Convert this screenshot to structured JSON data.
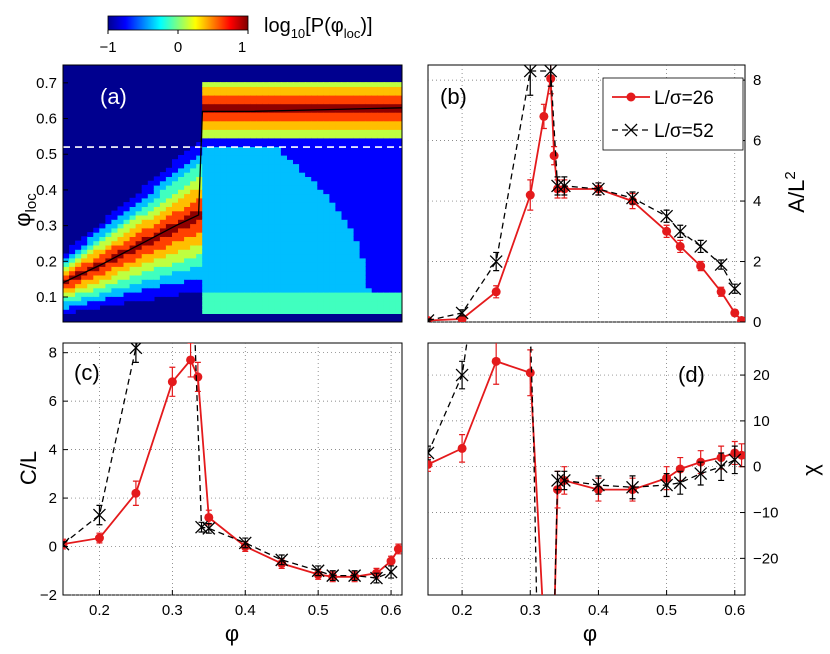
{
  "colorbar": {
    "label_main": "log",
    "label_sub": "10",
    "label_rest": "[P(φ",
    "label_sub2": "loc",
    "label_end": ")]",
    "ticks": [
      "−1",
      "0",
      "1"
    ]
  },
  "xlabel": "φ",
  "chart_data": [
    {
      "panel": "(a)",
      "type": "heatmap",
      "ylabel_main": "φ",
      "ylabel_sub": "loc",
      "xlim": [
        0.15,
        0.6
      ],
      "ylim": [
        0.03,
        0.75
      ],
      "yticks": [
        0.1,
        0.2,
        0.3,
        0.4,
        0.5,
        0.6,
        0.7
      ],
      "ytick_labels": [
        "0.1",
        "0.2",
        "0.3",
        "0.4",
        "0.5",
        "0.6",
        "0.7"
      ],
      "dashed_line_y": 0.52,
      "mean_curve": {
        "x": [
          0.15,
          0.2,
          0.25,
          0.3,
          0.33,
          0.335,
          0.4,
          0.5,
          0.6
        ],
        "y": [
          0.14,
          0.19,
          0.245,
          0.3,
          0.33,
          0.62,
          0.62,
          0.625,
          0.63
        ]
      },
      "colorscale": [
        "#00008f",
        "#0000ff",
        "#00bfff",
        "#40ffbf",
        "#bfff40",
        "#ffbf00",
        "#ff4000",
        "#8f0000"
      ]
    },
    {
      "panel": "(b)",
      "type": "line",
      "ylabel_main": "A/L",
      "ylabel_sup": "2",
      "xlim": [
        0.15,
        0.615
      ],
      "ylim": [
        0,
        8.5
      ],
      "yticks": [
        0,
        2,
        4,
        6,
        8
      ],
      "ytick_labels": [
        "0",
        "2",
        "4",
        "6",
        "8"
      ],
      "legend_position": "top-right",
      "series": [
        {
          "name": "L/σ=26",
          "color": "#e41a1c",
          "x": [
            0.15,
            0.2,
            0.25,
            0.3,
            0.32,
            0.33,
            0.335,
            0.34,
            0.35,
            0.4,
            0.45,
            0.5,
            0.52,
            0.55,
            0.58,
            0.6,
            0.61
          ],
          "y": [
            0.05,
            0.1,
            1.0,
            4.2,
            6.8,
            8.05,
            5.5,
            4.4,
            4.4,
            4.4,
            4.0,
            3.0,
            2.5,
            1.85,
            1.0,
            0.3,
            0.05
          ],
          "err": [
            0.1,
            0.1,
            0.2,
            0.5,
            0.4,
            0.5,
            0.3,
            0.3,
            0.3,
            0.2,
            0.25,
            0.2,
            0.2,
            0.15,
            0.15,
            0.1,
            0.05
          ]
        },
        {
          "name": "L/σ=52",
          "color": "#000000",
          "x": [
            0.15,
            0.2,
            0.25,
            0.3,
            0.33,
            0.34,
            0.35,
            0.4,
            0.45,
            0.5,
            0.52,
            0.55,
            0.58,
            0.6
          ],
          "y": [
            0.05,
            0.3,
            2.0,
            8.3,
            8.3,
            4.5,
            4.5,
            4.4,
            4.1,
            3.5,
            3.0,
            2.5,
            1.9,
            1.1
          ],
          "err": [
            0.05,
            0.1,
            0.3,
            0.8,
            0.5,
            0.3,
            0.3,
            0.2,
            0.2,
            0.2,
            0.2,
            0.2,
            0.15,
            0.15
          ]
        }
      ]
    },
    {
      "panel": "(c)",
      "type": "line",
      "ylabel_main": "C/L",
      "xlim": [
        0.15,
        0.615
      ],
      "ylim": [
        -2,
        8.4
      ],
      "yticks": [
        -2,
        0,
        2,
        4,
        6,
        8
      ],
      "ytick_labels": [
        "−2",
        "0",
        "2",
        "4",
        "6",
        "8"
      ],
      "xticks": [
        0.2,
        0.3,
        0.4,
        0.5,
        0.6
      ],
      "xtick_labels": [
        "0.2",
        "0.3",
        "0.4",
        "0.5",
        "0.6"
      ],
      "series": [
        {
          "name": "L/σ=26",
          "color": "#e41a1c",
          "x": [
            0.15,
            0.2,
            0.25,
            0.3,
            0.325,
            0.335,
            0.35,
            0.4,
            0.45,
            0.5,
            0.52,
            0.55,
            0.58,
            0.6,
            0.61
          ],
          "y": [
            0.1,
            0.35,
            2.2,
            6.8,
            7.7,
            7.0,
            1.2,
            0.0,
            -0.7,
            -1.15,
            -1.25,
            -1.25,
            -1.1,
            -0.6,
            -0.1
          ],
          "err": [
            0.2,
            0.2,
            0.5,
            0.6,
            0.7,
            0.6,
            0.3,
            0.2,
            0.2,
            0.2,
            0.2,
            0.2,
            0.2,
            0.2,
            0.2
          ]
        },
        {
          "name": "L/σ=52",
          "color": "#000000",
          "x": [
            0.15,
            0.2,
            0.25,
            0.26,
            0.33,
            0.34,
            0.35,
            0.4,
            0.45,
            0.5,
            0.52,
            0.55,
            0.58,
            0.6
          ],
          "y": [
            0.1,
            1.3,
            8.2,
            9.5,
            9.5,
            0.8,
            0.75,
            0.15,
            -0.55,
            -1.0,
            -1.2,
            -1.2,
            -1.3,
            -1.05
          ],
          "err": [
            0.1,
            0.4,
            0.6,
            0,
            0,
            0.2,
            0.2,
            0.2,
            0.2,
            0.2,
            0.2,
            0.2,
            0.2,
            0.25
          ]
        }
      ]
    },
    {
      "panel": "(d)",
      "type": "line",
      "ylabel_main": "χ",
      "xlim": [
        0.15,
        0.615
      ],
      "ylim": [
        -28,
        27
      ],
      "yticks": [
        -20,
        -10,
        0,
        10,
        20
      ],
      "ytick_labels": [
        "−20",
        "−10",
        "0",
        "10",
        "20"
      ],
      "xticks": [
        0.2,
        0.3,
        0.4,
        0.5,
        0.6
      ],
      "xtick_labels": [
        "0.2",
        "0.3",
        "0.4",
        "0.5",
        "0.6"
      ],
      "series": [
        {
          "name": "L/σ=26",
          "color": "#e41a1c",
          "x": [
            0.15,
            0.2,
            0.25,
            0.3,
            0.32,
            0.335,
            0.34,
            0.35,
            0.4,
            0.45,
            0.5,
            0.52,
            0.55,
            0.58,
            0.6,
            0.61
          ],
          "y": [
            0.5,
            4.0,
            23.0,
            20.5,
            -35.0,
            -35.0,
            -5.0,
            -3.0,
            -5.0,
            -5.0,
            -2.5,
            -0.5,
            1.0,
            2.0,
            3.0,
            2.5
          ],
          "err": [
            1.5,
            3.0,
            5.0,
            5.0,
            0,
            0,
            4.0,
            3.0,
            2.5,
            2.5,
            2.5,
            2.5,
            2.5,
            2.5,
            2.5,
            2.5
          ]
        },
        {
          "name": "L/σ=52",
          "color": "#000000",
          "x": [
            0.15,
            0.2,
            0.21,
            0.3,
            0.305,
            0.31,
            0.335,
            0.34,
            0.35,
            0.4,
            0.45,
            0.5,
            0.52,
            0.55,
            0.58,
            0.6
          ],
          "y": [
            3.0,
            20.0,
            30.0,
            30.0,
            5.0,
            -35.0,
            -35.0,
            -3.0,
            -3.0,
            -4.0,
            -4.5,
            -4.0,
            -3.5,
            -1.5,
            0.0,
            1.5
          ],
          "err": [
            1.5,
            3.0,
            0,
            0,
            0,
            0,
            0,
            2.0,
            2.0,
            2.0,
            2.5,
            2.5,
            2.5,
            2.5,
            3.0,
            3.0
          ]
        }
      ]
    }
  ]
}
